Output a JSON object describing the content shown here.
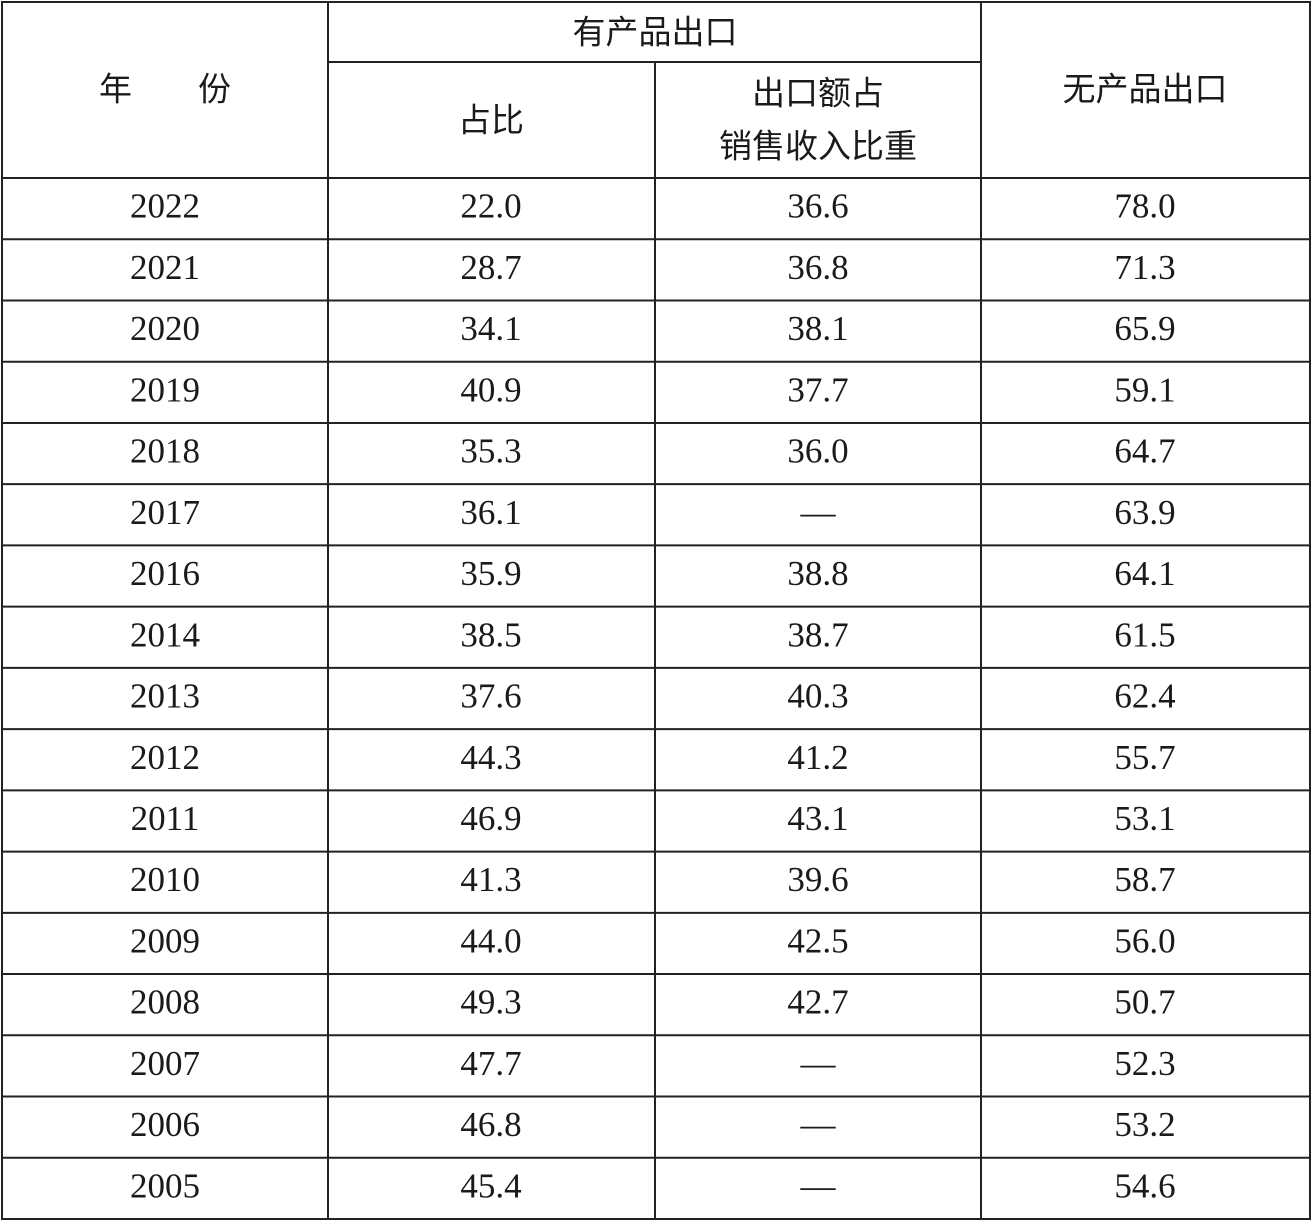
{
  "header": {
    "year": "年　　份",
    "group": "有产品出口",
    "share": "占比",
    "export_ratio": [
      "出口额占",
      "销售收入比重"
    ],
    "none": "无产品出口"
  },
  "table": {
    "rows": [
      [
        "2022",
        "22.0",
        "36.6",
        "78.0"
      ],
      [
        "2021",
        "28.7",
        "36.8",
        "71.3"
      ],
      [
        "2020",
        "34.1",
        "38.1",
        "65.9"
      ],
      [
        "2019",
        "40.9",
        "37.7",
        "59.1"
      ],
      [
        "2018",
        "35.3",
        "36.0",
        "64.7"
      ],
      [
        "2017",
        "36.1",
        "—",
        "63.9"
      ],
      [
        "2016",
        "35.9",
        "38.8",
        "64.1"
      ],
      [
        "2014",
        "38.5",
        "38.7",
        "61.5"
      ],
      [
        "2013",
        "37.6",
        "40.3",
        "62.4"
      ],
      [
        "2012",
        "44.3",
        "41.2",
        "55.7"
      ],
      [
        "2011",
        "46.9",
        "43.1",
        "53.1"
      ],
      [
        "2010",
        "41.3",
        "39.6",
        "58.7"
      ],
      [
        "2009",
        "44.0",
        "42.5",
        "56.0"
      ],
      [
        "2008",
        "49.3",
        "42.7",
        "50.7"
      ],
      [
        "2007",
        "47.7",
        "—",
        "52.3"
      ],
      [
        "2006",
        "46.8",
        "—",
        "53.2"
      ],
      [
        "2005",
        "45.4",
        "—",
        "54.6"
      ]
    ]
  }
}
